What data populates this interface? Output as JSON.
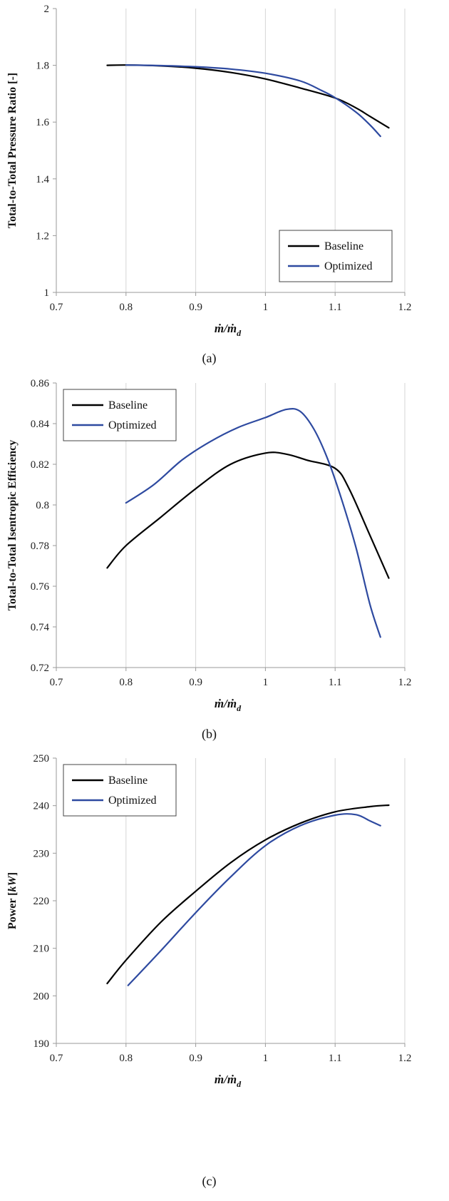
{
  "colors": {
    "baseline": "#000000",
    "optimized": "#2e4aa0"
  },
  "chart_data": [
    {
      "type": "line",
      "caption": "(a)",
      "ylabel": "Total-to-Total Pressure Ratio [-]",
      "xlabel_main": "ṁ/ṁ",
      "xlabel_sub": "d",
      "xlim": [
        0.7,
        1.2
      ],
      "ylim": [
        1,
        2
      ],
      "xticks": [
        0.7,
        0.8,
        0.9,
        1,
        1.1,
        1.2
      ],
      "yticks": [
        1,
        1.2,
        1.4,
        1.6,
        1.8,
        2
      ],
      "xtick_labels": [
        "0.7",
        "0.8",
        "0.9",
        "1",
        "1.1",
        "1.2"
      ],
      "ytick_labels": [
        "1",
        "1.2",
        "1.4",
        "1.6",
        "1.8",
        "2"
      ],
      "grid": "vertical",
      "legend_position": "bottom-right",
      "series": [
        {
          "name": "Baseline",
          "color_key": "baseline",
          "x": [
            0.773,
            0.8,
            0.85,
            0.9,
            0.95,
            1.0,
            1.05,
            1.1,
            1.13,
            1.15,
            1.177
          ],
          "y": [
            1.8,
            1.801,
            1.798,
            1.79,
            1.775,
            1.752,
            1.72,
            1.685,
            1.65,
            1.62,
            1.58
          ]
        },
        {
          "name": "Optimized",
          "color_key": "optimized",
          "x": [
            0.8,
            0.85,
            0.9,
            0.95,
            1.0,
            1.05,
            1.08,
            1.1,
            1.13,
            1.15,
            1.165
          ],
          "y": [
            1.801,
            1.799,
            1.795,
            1.787,
            1.772,
            1.745,
            1.712,
            1.686,
            1.635,
            1.59,
            1.55
          ]
        }
      ]
    },
    {
      "type": "line",
      "caption": "(b)",
      "ylabel": "Total-to-Total Isentropic Efficiency",
      "xlabel_main": "ṁ/ṁ",
      "xlabel_sub": "d",
      "xlim": [
        0.7,
        1.2
      ],
      "ylim": [
        0.72,
        0.86
      ],
      "xticks": [
        0.7,
        0.8,
        0.9,
        1,
        1.1,
        1.2
      ],
      "yticks": [
        0.72,
        0.74,
        0.76,
        0.78,
        0.8,
        0.82,
        0.84,
        0.86
      ],
      "xtick_labels": [
        "0.7",
        "0.8",
        "0.9",
        "1",
        "1.1",
        "1.2"
      ],
      "ytick_labels": [
        "0.72",
        "0.74",
        "0.76",
        "0.78",
        "0.8",
        "0.82",
        "0.84",
        "0.86"
      ],
      "grid": "vertical",
      "legend_position": "top-left",
      "series": [
        {
          "name": "Baseline",
          "color_key": "baseline",
          "x": [
            0.773,
            0.8,
            0.85,
            0.9,
            0.95,
            1.0,
            1.03,
            1.06,
            1.1,
            1.12,
            1.15,
            1.177
          ],
          "y": [
            0.769,
            0.78,
            0.794,
            0.808,
            0.82,
            0.8255,
            0.825,
            0.822,
            0.818,
            0.808,
            0.785,
            0.764
          ]
        },
        {
          "name": "Optimized",
          "color_key": "optimized",
          "x": [
            0.8,
            0.84,
            0.88,
            0.92,
            0.96,
            1.0,
            1.03,
            1.05,
            1.07,
            1.09,
            1.11,
            1.13,
            1.15,
            1.165
          ],
          "y": [
            0.801,
            0.81,
            0.822,
            0.831,
            0.838,
            0.843,
            0.847,
            0.846,
            0.837,
            0.822,
            0.802,
            0.779,
            0.751,
            0.735
          ]
        }
      ]
    },
    {
      "type": "line",
      "caption": "(c)",
      "ylabel_main": "Power [",
      "ylabel_unit": "kW",
      "ylabel_end": "]",
      "xlabel_main": "ṁ/ṁ",
      "xlabel_sub": "d",
      "xlim": [
        0.7,
        1.2
      ],
      "ylim": [
        190,
        250
      ],
      "xticks": [
        0.7,
        0.8,
        0.9,
        1,
        1.1,
        1.2
      ],
      "yticks": [
        190,
        200,
        210,
        220,
        230,
        240,
        250
      ],
      "xtick_labels": [
        "0.7",
        "0.8",
        "0.9",
        "1",
        "1.1",
        "1.2"
      ],
      "ytick_labels": [
        "190",
        "200",
        "210",
        "220",
        "230",
        "240",
        "250"
      ],
      "grid": "vertical",
      "legend_position": "top-left",
      "series": [
        {
          "name": "Baseline",
          "color_key": "baseline",
          "x": [
            0.773,
            0.8,
            0.85,
            0.9,
            0.95,
            1.0,
            1.05,
            1.1,
            1.15,
            1.177
          ],
          "y": [
            202.6,
            207.5,
            215.5,
            222.0,
            228.0,
            232.8,
            236.3,
            238.7,
            239.8,
            240.1
          ]
        },
        {
          "name": "Optimized",
          "color_key": "optimized",
          "x": [
            0.803,
            0.85,
            0.9,
            0.95,
            1.0,
            1.05,
            1.1,
            1.13,
            1.15,
            1.165
          ],
          "y": [
            202.2,
            209.5,
            217.5,
            225.0,
            231.6,
            235.8,
            238.0,
            238.1,
            236.8,
            235.8
          ]
        }
      ]
    }
  ]
}
